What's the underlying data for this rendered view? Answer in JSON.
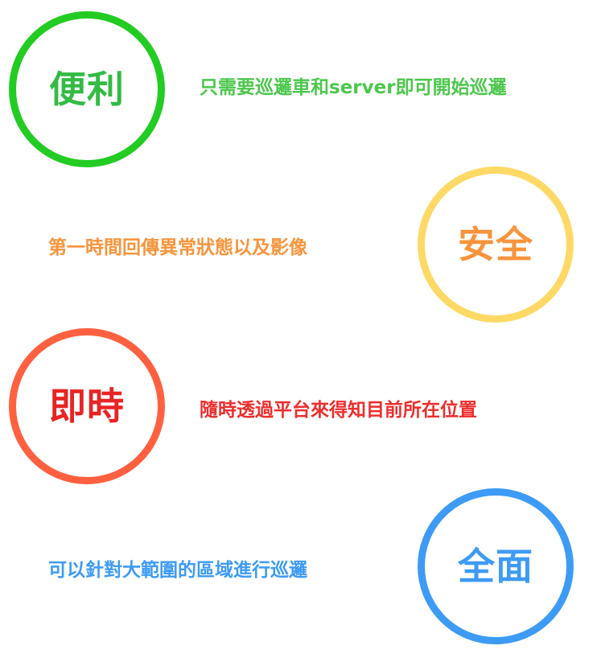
{
  "features": [
    {
      "title": "便利",
      "description": "只需要巡邏車和server即可開始巡邏",
      "color": "#22cc22"
    },
    {
      "title": "安全",
      "description": "第一時間回傳異常狀態以及影像",
      "circle_color": "#ffd966",
      "color": "#f7943c"
    },
    {
      "title": "即時",
      "description": "隨時透過平台來得知目前所在位置",
      "circle_color": "#ff6140",
      "color": "#ee2d2d"
    },
    {
      "title": "全面",
      "description": "可以針對大範圍的區域進行巡邏",
      "color": "#3d9bf5"
    }
  ]
}
